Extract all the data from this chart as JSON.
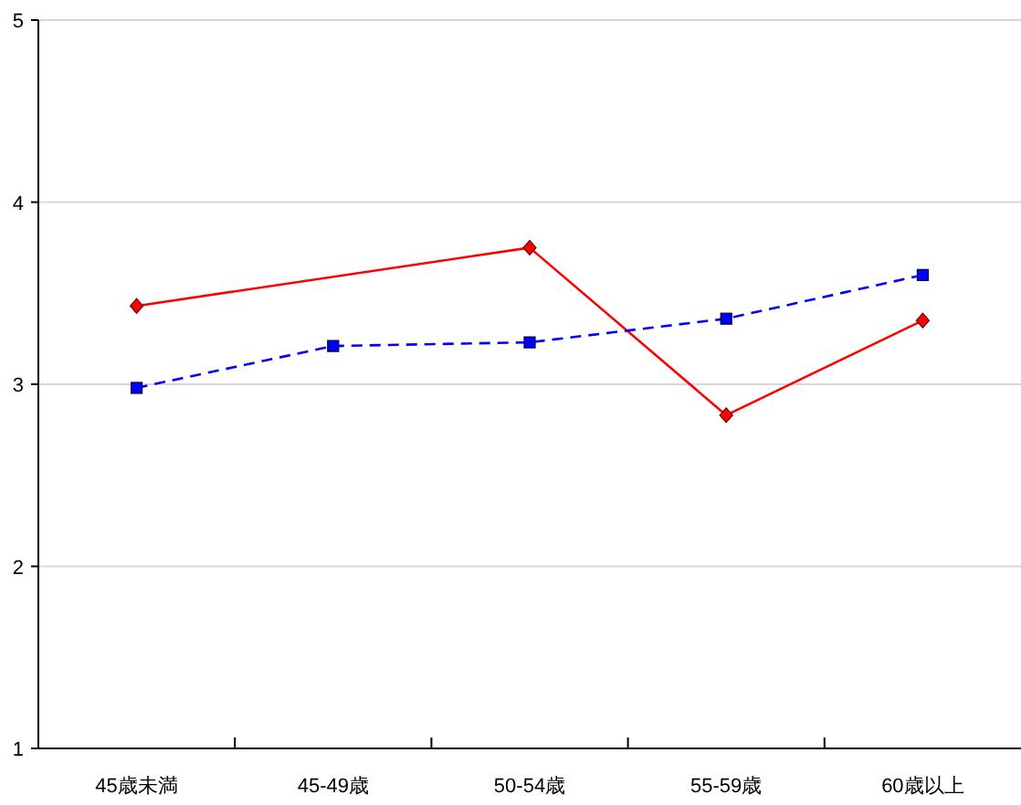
{
  "chart_data": {
    "type": "line",
    "categories": [
      "45歳未満",
      "45-49歳",
      "50-54歳",
      "55-59歳",
      "60歳以上"
    ],
    "series": [
      {
        "color": "#ff0000",
        "marker": "diamond",
        "line_style": "solid",
        "values": [
          3.43,
          null,
          3.75,
          2.83,
          3.35
        ]
      },
      {
        "color": "#0000ff",
        "marker": "square",
        "line_style": "dashed",
        "values": [
          2.98,
          3.21,
          3.23,
          3.36,
          3.6
        ]
      }
    ],
    "ylim": [
      1,
      5
    ],
    "yticks": [
      1,
      2,
      3,
      4,
      5
    ],
    "grid": "y"
  }
}
